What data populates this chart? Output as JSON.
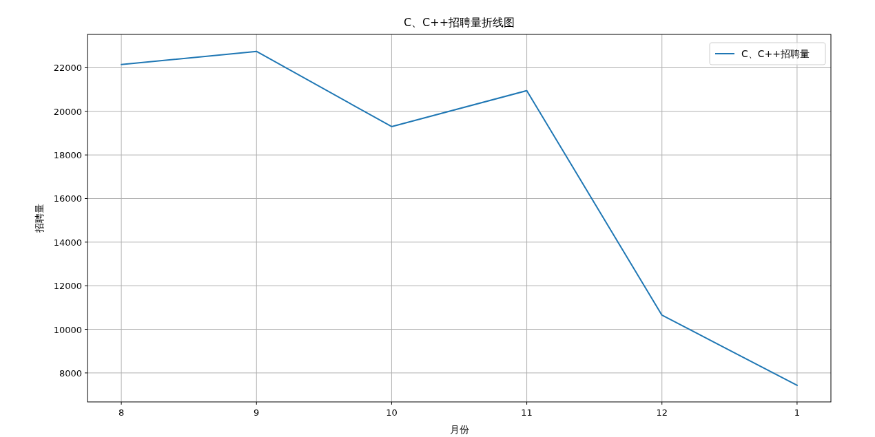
{
  "chart_data": {
    "type": "line",
    "title": "C、C++招聘量折线图",
    "xlabel": "月份",
    "ylabel": "招聘量",
    "categories": [
      "8",
      "9",
      "10",
      "11",
      "12",
      "1"
    ],
    "series": [
      {
        "name": "C、C++招聘量",
        "color": "#1f77b4",
        "values": [
          22150,
          22750,
          19300,
          20950,
          10650,
          7430
        ]
      }
    ],
    "ylim": [
      6670,
      23530
    ],
    "yticks": [
      8000,
      10000,
      12000,
      14000,
      16000,
      18000,
      20000,
      22000
    ],
    "grid": true,
    "legend": "top right",
    "marker": "none",
    "line_style": "solid"
  }
}
